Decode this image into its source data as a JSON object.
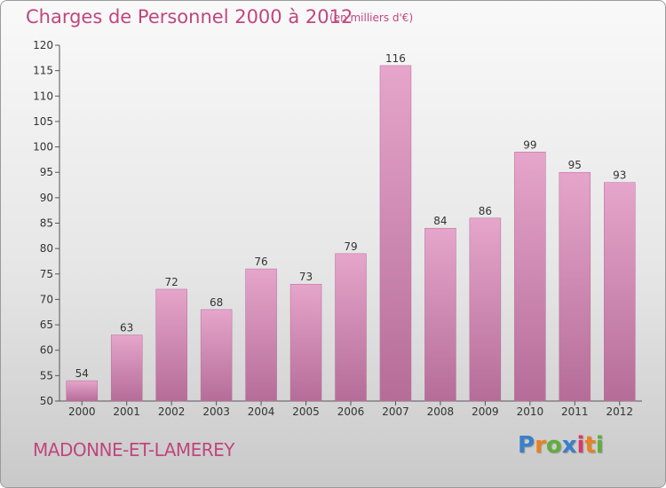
{
  "header": {
    "title": "Charges de Personnel 2000 à 2012",
    "subtitle": "(en milliers d'€)"
  },
  "footer": {
    "commune": "MADONNE-ET-LAMEREY",
    "logo": {
      "letters": [
        "P",
        "r",
        "o",
        "x",
        "i",
        "t",
        "i"
      ],
      "colors": [
        "#3a7fc9",
        "#e8821e",
        "#5fae3c",
        "#3a7fc9",
        "#d63a6a",
        "#e8821e",
        "#5fae3c"
      ]
    }
  },
  "colors": {
    "bar_top": "#e6a5cb",
    "bar_bottom": "#b56d98",
    "text_accent": "#c0467f"
  },
  "chart_data": {
    "type": "bar",
    "categories": [
      "2000",
      "2001",
      "2002",
      "2003",
      "2004",
      "2005",
      "2006",
      "2007",
      "2008",
      "2009",
      "2010",
      "2011",
      "2012"
    ],
    "values": [
      54,
      63,
      72,
      68,
      76,
      73,
      79,
      116,
      84,
      86,
      99,
      95,
      93
    ],
    "ylim": [
      50,
      120
    ],
    "yticks": [
      50,
      55,
      60,
      65,
      70,
      75,
      80,
      85,
      90,
      95,
      100,
      105,
      110,
      115,
      120
    ],
    "grid": false,
    "legend": "none"
  }
}
